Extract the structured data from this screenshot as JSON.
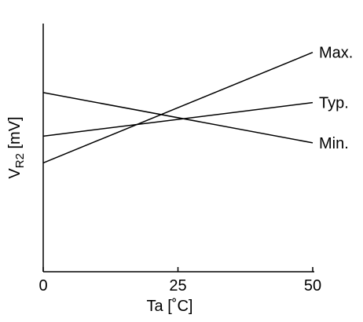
{
  "chart_data": {
    "type": "line",
    "title": "",
    "xlabel": "Ta [˚C]",
    "ylabel": {
      "main": "V",
      "subscript": "R2",
      "unit": " [mV]"
    },
    "xlim": [
      0,
      53.5
    ],
    "ylim": [
      -1.0,
      1.0
    ],
    "x_ticks": [
      0,
      25,
      50
    ],
    "y_ticks": [],
    "grid": false,
    "legend": "none",
    "line_color": "#000000",
    "series": [
      {
        "name": "Max.",
        "x": [
          0,
          50
        ],
        "y": [
          -0.4906,
          0.7547
        ]
      },
      {
        "name": "Typ.",
        "x": [
          0,
          50
        ],
        "y": [
          -0.1887,
          0.1887
        ]
      },
      {
        "name": "Min.",
        "x": [
          0,
          50
        ],
        "y": [
          0.3019,
          -0.2642
        ]
      }
    ]
  }
}
